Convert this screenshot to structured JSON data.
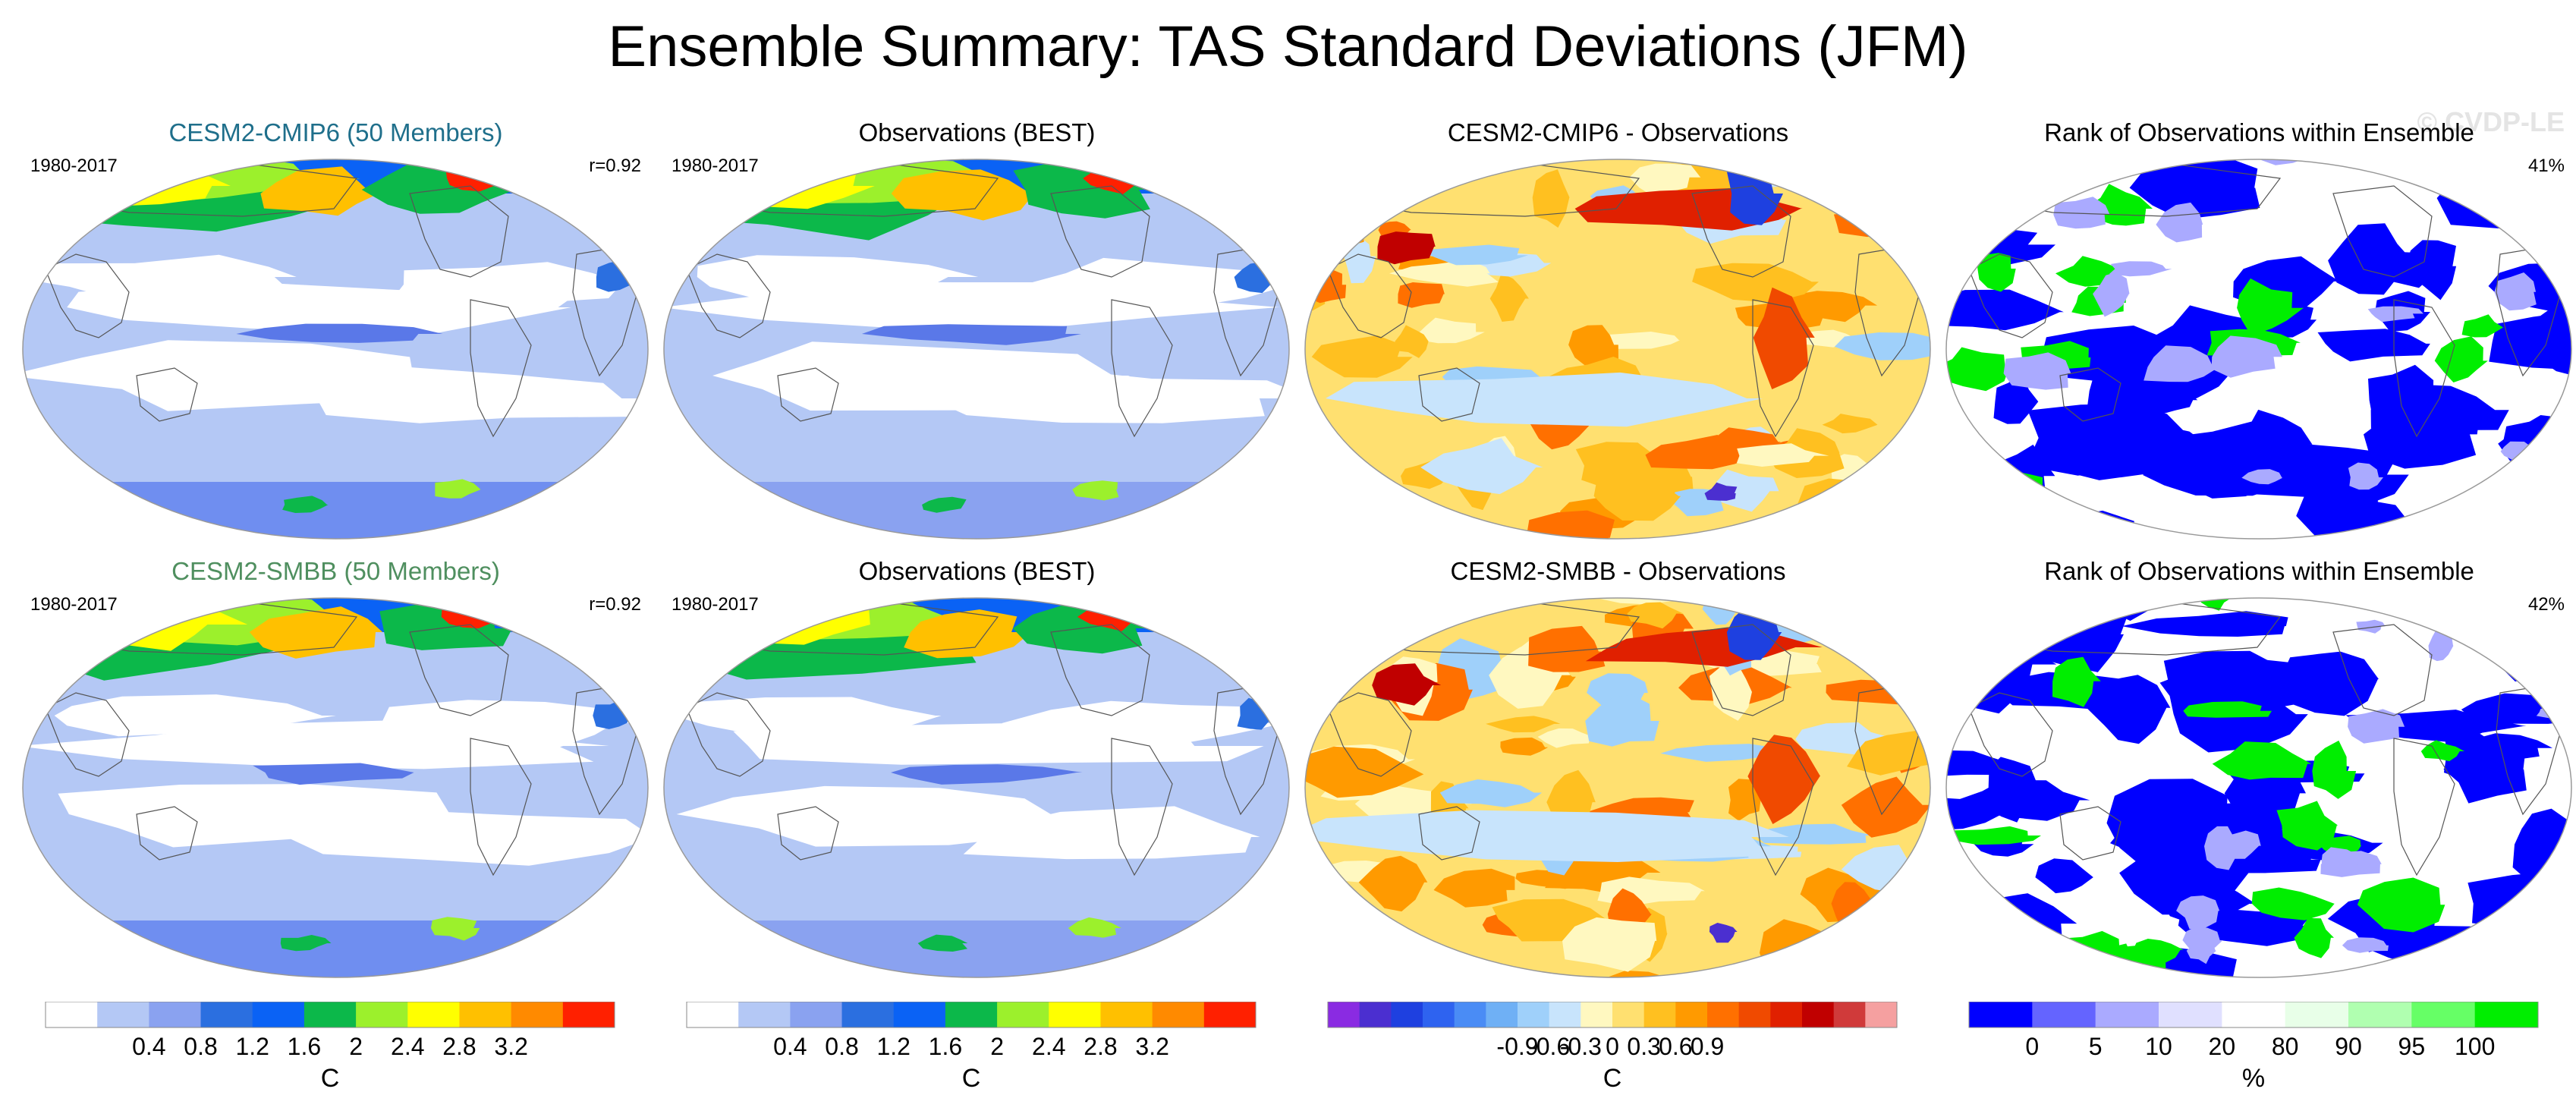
{
  "figure": {
    "title": "Ensemble Summary: TAS Standard Deviations (JFM)",
    "watermark": "© CVDP-LE"
  },
  "panels": [
    {
      "id": "r1c1",
      "title": "CESM2-CMIP6 (50 Members)",
      "title_color": "#1f6f8b",
      "left": "1980-2017",
      "right": "r=0.92",
      "field": "std"
    },
    {
      "id": "r1c2",
      "title": "Observations (BEST)",
      "title_color": "#000000",
      "left": "1980-2017",
      "right": "",
      "field": "std_obs"
    },
    {
      "id": "r1c3",
      "title": "CESM2-CMIP6 - Observations",
      "title_color": "#000000",
      "left": "",
      "right": "",
      "field": "diff"
    },
    {
      "id": "r1c4",
      "title": "Rank of Observations within Ensemble",
      "title_color": "#000000",
      "left": "",
      "right": "41%",
      "field": "rank"
    },
    {
      "id": "r2c1",
      "title": "CESM2-SMBB (50 Members)",
      "title_color": "#4f8f5f",
      "left": "1980-2017",
      "right": "r=0.92",
      "field": "std"
    },
    {
      "id": "r2c2",
      "title": "Observations (BEST)",
      "title_color": "#000000",
      "left": "1980-2017",
      "right": "",
      "field": "std_obs"
    },
    {
      "id": "r2c3",
      "title": "CESM2-SMBB - Observations",
      "title_color": "#000000",
      "left": "",
      "right": "",
      "field": "diff"
    },
    {
      "id": "r2c4",
      "title": "Rank of Observations within Ensemble",
      "title_color": "#000000",
      "left": "",
      "right": "42%",
      "field": "rank"
    }
  ],
  "chart_data": [
    {
      "type": "heatmap",
      "name": "std-colorbar",
      "unit": "C",
      "ticks": [
        "0.4",
        "0.8",
        "1.2",
        "1.6",
        "2",
        "2.4",
        "2.8",
        "3.2"
      ],
      "colors": [
        "#ffffff",
        "#b4c8f5",
        "#8aa2f0",
        "#2b6fe0",
        "#0a62f5",
        "#0cb84a",
        "#9cf02c",
        "#ffff00",
        "#ffc000",
        "#ff8a00",
        "#ff2000"
      ]
    },
    {
      "type": "heatmap",
      "name": "std-colorbar-obs",
      "unit": "C",
      "ticks": [
        "0.4",
        "0.8",
        "1.2",
        "1.6",
        "2",
        "2.4",
        "2.8",
        "3.2"
      ],
      "colors": [
        "#ffffff",
        "#b4c8f5",
        "#8aa2f0",
        "#2b6fe0",
        "#0a62f5",
        "#0cb84a",
        "#9cf02c",
        "#ffff00",
        "#ffc000",
        "#ff8a00",
        "#ff2000"
      ]
    },
    {
      "type": "heatmap",
      "name": "diff-colorbar",
      "unit": "C",
      "ticks": [
        "-0.9",
        "-0.6",
        "-0.3",
        "0",
        "0.3",
        "0.6",
        "0.9"
      ],
      "colors": [
        "#8a2be2",
        "#4b2fd0",
        "#1e40e0",
        "#2e63f0",
        "#4a8cf5",
        "#6fb0f5",
        "#9fd0fa",
        "#c8e4fc",
        "#fff8c0",
        "#ffe070",
        "#ffc020",
        "#ff9a00",
        "#ff7000",
        "#f04a00",
        "#e02000",
        "#c00000",
        "#d03a3a",
        "#f5a0a0"
      ]
    },
    {
      "type": "heatmap",
      "name": "rank-colorbar",
      "unit": "%",
      "ticks": [
        "0",
        "5",
        "10",
        "20",
        "80",
        "90",
        "95",
        "100"
      ],
      "colors": [
        "#0000ff",
        "#6464ff",
        "#aaaaff",
        "#e0e0ff",
        "#ffffff",
        "#e8ffe8",
        "#b0ffb0",
        "#66ff66",
        "#00ee00"
      ]
    }
  ]
}
